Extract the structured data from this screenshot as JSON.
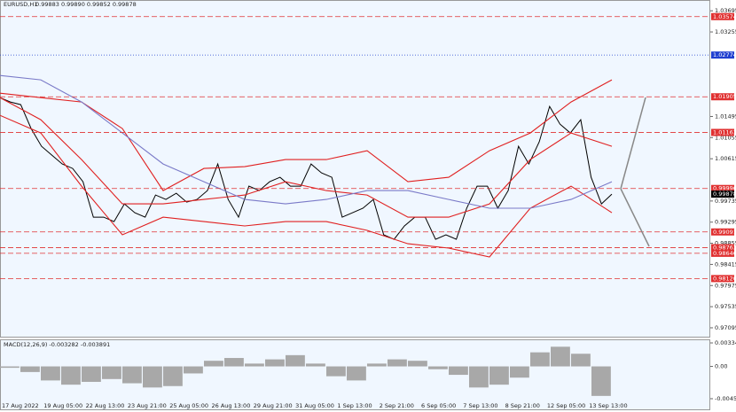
{
  "chart_data": [
    {
      "type": "line",
      "title": "EURUSD,H1",
      "quote": "0.99883 0.99890 0.99852 0.99878",
      "x_axis_labels": [
        "17 Aug 2022",
        "19 Aug 05:00",
        "22 Aug 13:00",
        "23 Aug 21:00",
        "25 Aug 05:00",
        "26 Aug 13:00",
        "29 Aug 21:00",
        "31 Aug 05:00",
        "1 Sep 13:00",
        "2 Sep 21:00",
        "6 Sep 05:00",
        "7 Sep 13:00",
        "8 Sep 21:00",
        "12 Sep 05:00",
        "13 Sep 13:00"
      ],
      "series": [
        {
          "name": "EURUSD",
          "color": "#000000",
          "values": [
            1.01888,
            1.01796,
            1.01741,
            1.01243,
            1.00874,
            1.0069,
            1.00505,
            1.00413,
            1.00137,
            0.99399,
            0.99399,
            0.99307,
            0.99676,
            0.99491,
            0.99399,
            0.9986,
            0.99768,
            0.99897,
            0.99713,
            0.99768,
            0.99952,
            1.00505,
            0.99768,
            0.99399,
            1.00045,
            0.99952,
            1.00137,
            1.00229,
            1.00045,
            1.00045,
            1.00505,
            1.00321,
            1.00229,
            0.99399,
            0.99491,
            0.99584,
            0.99768,
            0.99031,
            0.98938,
            0.99215,
            0.99399,
            0.99399,
            0.98938,
            0.99031,
            0.98938,
            0.99584,
            1.00045,
            1.00045,
            0.99584,
            0.99952,
            1.00874,
            1.00505,
            1.00966,
            1.01704,
            1.01335,
            1.01151,
            1.01427,
            1.00229,
            0.99676,
            0.99878
          ]
        },
        {
          "name": "Upper band",
          "color": "#e02020",
          "values": [
            1.0198,
            1.01888,
            1.01796,
            1.01243,
            0.99952,
            1.00413,
            1.0045,
            1.00598,
            1.00598,
            1.00782,
            1.00137,
            1.00229,
            1.00782,
            1.01151,
            1.01796,
            1.02257
          ]
        },
        {
          "name": "Middle band",
          "color": "#e02020",
          "values": [
            1.01888,
            1.01427,
            1.00598,
            0.99676,
            0.99676,
            0.99768,
            0.9986,
            1.00137,
            0.99952,
            0.9986,
            0.99399,
            0.99399,
            0.99676,
            1.00598,
            1.01151,
            1.00874
          ]
        },
        {
          "name": "Lower band",
          "color": "#e02020",
          "values": [
            1.01519,
            1.01151,
            1.00045,
            0.99031,
            0.99399,
            0.99307,
            0.99215,
            0.99307,
            0.99307,
            0.99123,
            0.98846,
            0.98754,
            0.9857,
            0.99584,
            1.00045,
            0.99491
          ]
        },
        {
          "name": "Moving average",
          "color": "#7a7ac8",
          "values": [
            1.02349,
            1.02257,
            1.01796,
            1.01151,
            1.00505,
            1.00137,
            0.99768,
            0.99676,
            0.99768,
            0.99952,
            0.99952,
            0.99768,
            0.99584,
            0.99584,
            0.99768,
            1.00137
          ]
        }
      ],
      "levels": [
        {
          "value": 1.03574,
          "color": "#e03030",
          "style": "dashed"
        },
        {
          "value": 1.02774,
          "color": "#2040d0",
          "style": "dotted"
        },
        {
          "value": 1.01905,
          "color": "#e03030",
          "style": "dashed"
        },
        {
          "value": 1.01163,
          "color": "#e03030",
          "style": "dashed"
        },
        {
          "value": 0.99996,
          "color": "#e03030",
          "style": "dashed"
        },
        {
          "value": 0.99878,
          "color": "#000000",
          "style": "none"
        },
        {
          "value": 0.99091,
          "color": "#e03030",
          "style": "dashed"
        },
        {
          "value": 0.98763,
          "color": "#e03030",
          "style": "dashed"
        },
        {
          "value": 0.98646,
          "color": "#e03030",
          "style": "dashed"
        },
        {
          "value": 0.9812,
          "label": "0.98120",
          "color": "#e03030",
          "style": "dashed"
        }
      ],
      "ylim": [
        0.9691,
        1.0392
      ],
      "yticks": [
        1.03695,
        1.03255,
        1.01495,
        1.01055,
        1.00615,
        0.99735,
        0.99295,
        0.98855,
        0.98415,
        0.97975,
        0.97535,
        0.97095
      ]
    },
    {
      "type": "bar",
      "title": "MACD(12,26,9) -0.003282 -0.003891",
      "color": "#a8a8a8",
      "values": [
        -0.0002,
        -0.0008,
        -0.002,
        -0.0026,
        -0.0022,
        -0.0018,
        -0.0024,
        -0.003,
        -0.0028,
        -0.001,
        0.0008,
        0.0012,
        0.0004,
        0.001,
        0.0016,
        0.0004,
        -0.0014,
        -0.002,
        0.0004,
        0.001,
        0.0008,
        -0.0004,
        -0.0012,
        -0.003,
        -0.0026,
        -0.0016,
        0.002,
        0.0028,
        0.0018,
        -0.0042
      ],
      "ylim": [
        -0.00611,
        0.00385
      ],
      "yticks": [
        0.003343,
        {
          "value": 0,
          "label": "0.00"
        },
        -0.004595
      ]
    }
  ]
}
